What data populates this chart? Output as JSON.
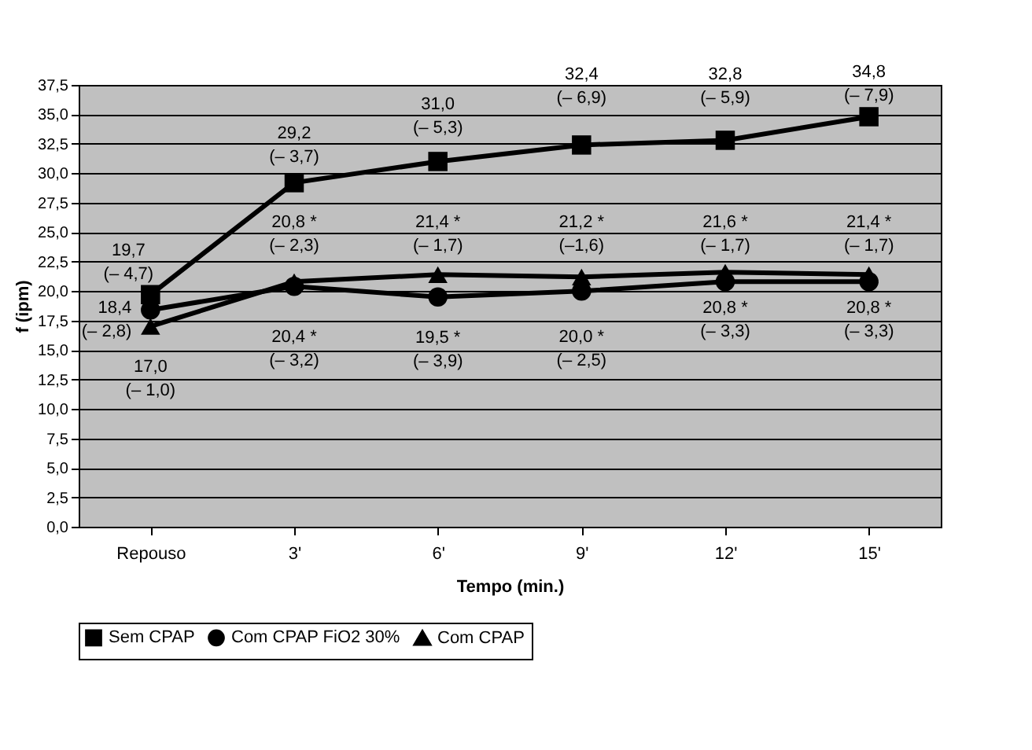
{
  "chart_data": {
    "type": "line",
    "xlabel": "Tempo (min.)",
    "ylabel": "f (ipm)",
    "categories": [
      "Repouso",
      "3'",
      "6'",
      "9'",
      "12'",
      "15'"
    ],
    "ylim": [
      0,
      37.5
    ],
    "yticks": [
      {
        "value": 0,
        "label": "0,0"
      },
      {
        "value": 2.5,
        "label": "2,5"
      },
      {
        "value": 5,
        "label": "5,0"
      },
      {
        "value": 7.5,
        "label": "7,5"
      },
      {
        "value": 10,
        "label": "10,0"
      },
      {
        "value": 12.5,
        "label": "12,5"
      },
      {
        "value": 15,
        "label": "15,0"
      },
      {
        "value": 17.5,
        "label": "17,5"
      },
      {
        "value": 20,
        "label": "20,0"
      },
      {
        "value": 22.5,
        "label": "22,5"
      },
      {
        "value": 25,
        "label": "25,0"
      },
      {
        "value": 27.5,
        "label": "27,5"
      },
      {
        "value": 30,
        "label": "30,0"
      },
      {
        "value": 32.5,
        "label": "32,5"
      },
      {
        "value": 35,
        "label": "35,0"
      },
      {
        "value": 37.5,
        "label": "37,5"
      }
    ],
    "grid": "y",
    "legend": "bottom",
    "line_style": "solid",
    "series": [
      {
        "name": "Sem CPAP",
        "color": "#000000",
        "marker": "square",
        "values": [
          19.7,
          29.2,
          31.0,
          32.4,
          32.8,
          34.8
        ],
        "value_labels": [
          "19,7\n(– 4,7)",
          "29,2\n(– 3,7)",
          "31,0\n(– 5,3)",
          "32,4\n(– 6,9)",
          "32,8\n(– 5,9)",
          "34,8\n(– 7,9)"
        ]
      },
      {
        "name": "Com CPAP FiO2 30%",
        "color": "#000000",
        "marker": "circle",
        "values": [
          18.4,
          20.4,
          19.5,
          20.0,
          20.8,
          20.8
        ],
        "value_labels": [
          "18,4\n(– 2,8)",
          "20,4 *\n(– 3,2)",
          "19,5 *\n(– 3,9)",
          "20,0 *\n(– 2,5)",
          "20,8 *\n(– 3,3)",
          "20,8 *\n(– 3,3)"
        ]
      },
      {
        "name": "Com CPAP",
        "color": "#000000",
        "marker": "triangle",
        "values": [
          17.0,
          20.8,
          21.4,
          21.2,
          21.6,
          21.4
        ],
        "value_labels": [
          "17,0\n(– 1,0)",
          "20,8 *\n(– 2,3)",
          "21,4 *\n(– 1,7)",
          "21,2 *\n(–1,6)",
          "21,6 *\n(– 1,7)",
          "21,4 *\n(– 1,7)"
        ]
      }
    ]
  }
}
